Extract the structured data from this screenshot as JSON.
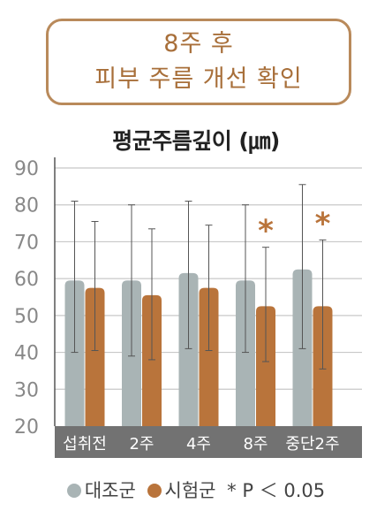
{
  "header": {
    "line1": "8주 후",
    "line2": "피부 주름 개선 확인"
  },
  "colors": {
    "control": "#a9b4b5",
    "test": "#b9743b",
    "accent": "#b98a5b",
    "axis_band": "#727272"
  },
  "chart_data": {
    "type": "bar",
    "title": "평균주름깊이 (㎛)",
    "ylim": [
      20,
      90
    ],
    "yticks": [
      20,
      30,
      40,
      50,
      60,
      70,
      80,
      90
    ],
    "categories": [
      "섭취전",
      "2주",
      "4주",
      "8주",
      "중단2주"
    ],
    "series": [
      {
        "name": "대조군",
        "values": [
          59.5,
          59.5,
          61.5,
          59.5,
          62.5
        ],
        "error_low": [
          40,
          39,
          41,
          40,
          41
        ],
        "error_high": [
          81,
          80,
          81,
          80,
          85.5
        ]
      },
      {
        "name": "시험군",
        "values": [
          57.5,
          55.5,
          57.5,
          52.5,
          52.5
        ],
        "error_low": [
          40.5,
          38,
          40.5,
          37.5,
          35.5
        ],
        "error_high": [
          75.5,
          73.5,
          74.5,
          68.5,
          70.5
        ]
      }
    ],
    "significance": [
      {
        "category": "8주",
        "mark": "*"
      },
      {
        "category": "중단2주",
        "mark": "*"
      }
    ],
    "legend": {
      "control": "대조군",
      "test": "시험군",
      "note": "* P ＜ 0.05"
    },
    "grid": true
  }
}
